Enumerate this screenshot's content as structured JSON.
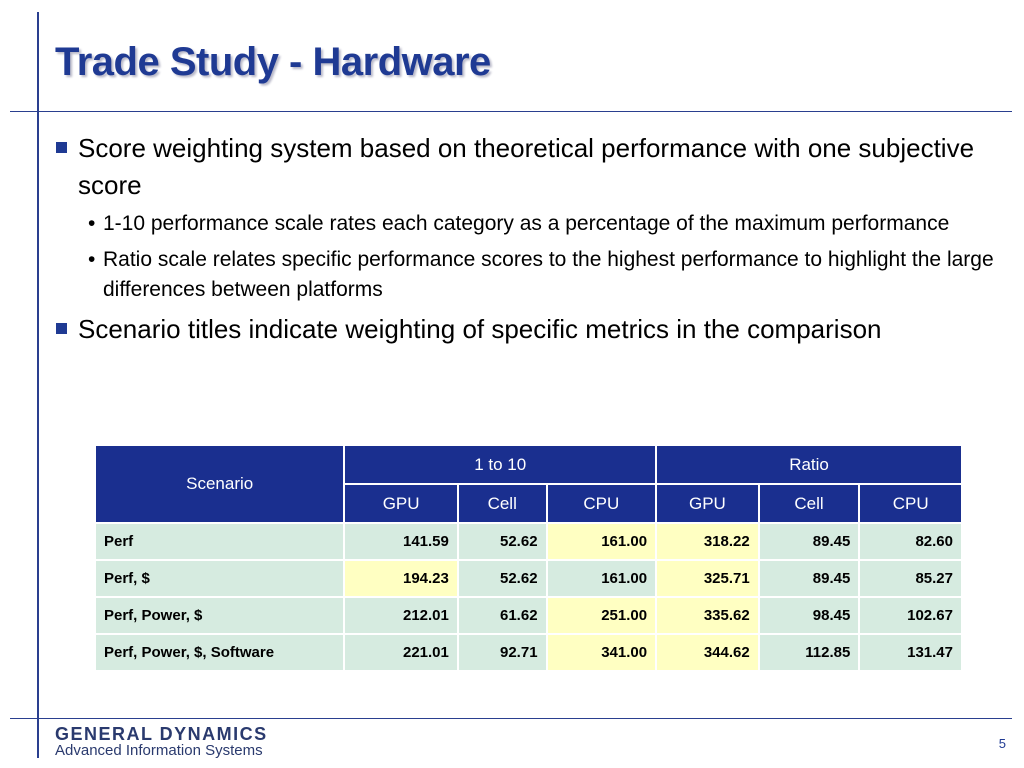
{
  "slide": {
    "title": "Trade Study - Hardware",
    "page_number": "5"
  },
  "bullets": [
    {
      "text": "Score weighting system based on theoretical performance with one subjective score",
      "sub": [
        "1-10 performance scale rates each category as a percentage of the maximum performance",
        "Ratio scale relates specific performance scores to the highest performance to highlight the large differences between platforms"
      ]
    },
    {
      "text": "Scenario titles indicate weighting of specific metrics in the comparison",
      "sub": []
    }
  ],
  "table": {
    "scenario_header": "Scenario",
    "group_headers": [
      "1 to 10",
      "Ratio"
    ],
    "sub_headers": [
      "GPU",
      "Cell",
      "CPU",
      "GPU",
      "Cell",
      "CPU"
    ],
    "rows": [
      {
        "label": "Perf",
        "values": [
          "141.59",
          "52.62",
          "161.00",
          "318.22",
          "89.45",
          "82.60"
        ],
        "highlight": [
          false,
          false,
          true,
          true,
          false,
          false
        ]
      },
      {
        "label": "Perf, $",
        "values": [
          "194.23",
          "52.62",
          "161.00",
          "325.71",
          "89.45",
          "85.27"
        ],
        "highlight": [
          true,
          false,
          false,
          true,
          false,
          false
        ]
      },
      {
        "label": "Perf, Power, $",
        "values": [
          "212.01",
          "61.62",
          "251.00",
          "335.62",
          "98.45",
          "102.67"
        ],
        "highlight": [
          false,
          false,
          true,
          true,
          false,
          false
        ]
      },
      {
        "label": "Perf, Power, $, Software",
        "values": [
          "221.01",
          "92.71",
          "341.00",
          "344.62",
          "112.85",
          "131.47"
        ],
        "highlight": [
          false,
          false,
          true,
          true,
          false,
          false
        ]
      }
    ],
    "colors": {
      "header_bg": "#1a2f8f",
      "cell_bg": "#d6ebe0",
      "highlight_bg": "#ffffc2"
    }
  },
  "footer": {
    "company": "GENERAL DYNAMICS",
    "division": "Advanced Information Systems"
  }
}
